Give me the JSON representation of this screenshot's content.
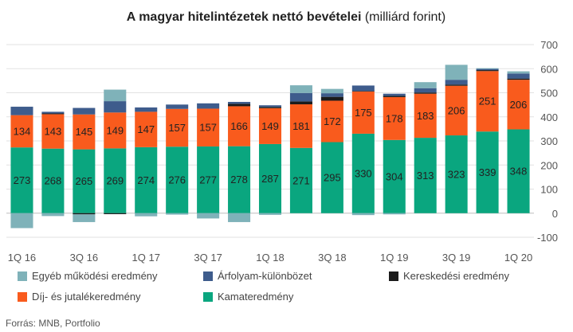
{
  "chart_data": {
    "type": "bar",
    "stacked": true,
    "title_bold": "A magyar hitelintézetek nettó bevételei",
    "title_normal": " (milliárd forint)",
    "source": "Forrás: MNB, Portfolio",
    "categories": [
      "1Q 16",
      "2Q 16",
      "3Q 16",
      "4Q 16",
      "1Q 17",
      "2Q 17",
      "3Q 17",
      "4Q 17",
      "1Q 18",
      "2Q 18",
      "3Q 18",
      "4Q 18",
      "1Q 19",
      "2Q 19",
      "3Q 19",
      "4Q 19",
      "1Q 20"
    ],
    "xtick_labels": [
      "1Q 16",
      "",
      "3Q 16",
      "",
      "1Q 17",
      "",
      "3Q 17",
      "",
      "1Q 18",
      "",
      "3Q 18",
      "",
      "1Q 19",
      "",
      "3Q 19",
      "",
      "1Q 20"
    ],
    "ylim": [
      -100,
      700
    ],
    "yticks": [
      -100,
      0,
      100,
      200,
      300,
      400,
      500,
      600,
      700
    ],
    "grid": true,
    "legend_position": "bottom",
    "series": [
      {
        "name": "Kamateredmény",
        "color": "#0aa67f",
        "labeled": true,
        "values": [
          273,
          268,
          265,
          269,
          274,
          276,
          277,
          278,
          287,
          271,
          295,
          330,
          304,
          313,
          323,
          339,
          348
        ]
      },
      {
        "name": "Díj- és jutalékeredmény",
        "color": "#f95b1d",
        "labeled": true,
        "values": [
          134,
          143,
          145,
          149,
          147,
          157,
          157,
          166,
          149,
          181,
          172,
          175,
          178,
          183,
          206,
          251,
          206
        ]
      },
      {
        "name": "Kereskedési eredmény",
        "color": "#1b1b1b",
        "labeled": false,
        "values": [
          0,
          3,
          -5,
          -4,
          0,
          0,
          0,
          10,
          5,
          12,
          16,
          2,
          5,
          5,
          5,
          4,
          5
        ]
      },
      {
        "name": "Árfolyam-különbözet",
        "color": "#3e5c8c",
        "labeled": false,
        "values": [
          35,
          7,
          27,
          47,
          18,
          18,
          22,
          8,
          7,
          35,
          15,
          23,
          9,
          18,
          20,
          5,
          21
        ]
      },
      {
        "name": "Egyéb működési eredmény",
        "color": "#7fb2b9",
        "labeled": false,
        "values": [
          -62,
          -12,
          -32,
          48,
          -13,
          -6,
          -22,
          -37,
          -7,
          32,
          18,
          -8,
          -5,
          25,
          62,
          3,
          9
        ]
      }
    ],
    "legend_order": [
      "Egyéb működési eredmény",
      "Árfolyam-különbözet",
      "Kereskedési eredmény",
      "Díj- és jutalékeredmény",
      "Kamateredmény"
    ]
  }
}
